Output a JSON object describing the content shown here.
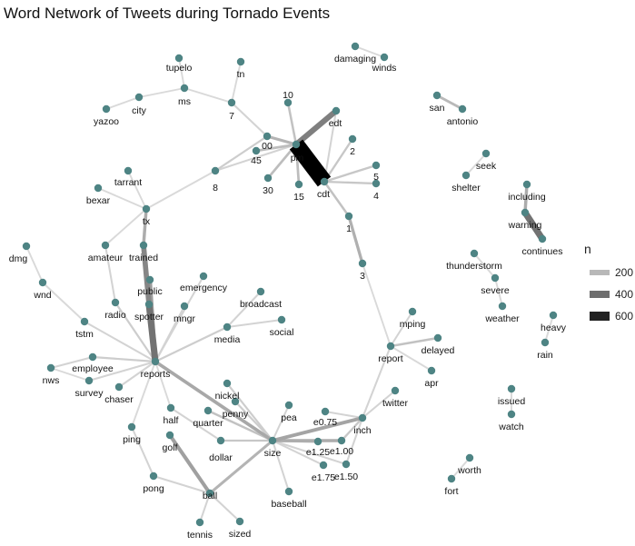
{
  "title": "Word Network of Tweets during Tornado Events",
  "legend": {
    "title": "n",
    "entries": [
      {
        "label": "200",
        "value": 200,
        "color": "#b8b8b8"
      },
      {
        "label": "400",
        "value": 400,
        "color": "#6e6e6e"
      },
      {
        "label": "600",
        "value": 600,
        "color": "#222222"
      }
    ]
  },
  "colors": {
    "node": "#4e8484",
    "edge_low": "#e3e3e3",
    "edge_high": "#000000"
  },
  "nodes": [
    {
      "id": "damaging",
      "label": "damaging"
    },
    {
      "id": "winds",
      "label": "winds"
    },
    {
      "id": "tupelo",
      "label": "tupelo"
    },
    {
      "id": "tn",
      "label": "tn"
    },
    {
      "id": "ms",
      "label": "ms"
    },
    {
      "id": "city",
      "label": "city"
    },
    {
      "id": "yazoo",
      "label": "yazoo"
    },
    {
      "id": "7",
      "label": "7"
    },
    {
      "id": "10",
      "label": "10"
    },
    {
      "id": "edt",
      "label": "edt"
    },
    {
      "id": "00",
      "label": "00"
    },
    {
      "id": "45",
      "label": "45"
    },
    {
      "id": "pm",
      "label": "pm"
    },
    {
      "id": "2",
      "label": "2"
    },
    {
      "id": "5",
      "label": "5"
    },
    {
      "id": "4",
      "label": "4"
    },
    {
      "id": "cdt",
      "label": "cdt"
    },
    {
      "id": "15",
      "label": "15"
    },
    {
      "id": "30",
      "label": "30"
    },
    {
      "id": "8",
      "label": "8"
    },
    {
      "id": "1",
      "label": "1"
    },
    {
      "id": "3",
      "label": "3"
    },
    {
      "id": "san",
      "label": "san"
    },
    {
      "id": "antonio",
      "label": "antonio"
    },
    {
      "id": "seek",
      "label": "seek"
    },
    {
      "id": "shelter",
      "label": "shelter"
    },
    {
      "id": "including",
      "label": "including"
    },
    {
      "id": "warning",
      "label": "warning"
    },
    {
      "id": "continues",
      "label": "continues"
    },
    {
      "id": "tarrant",
      "label": "tarrant"
    },
    {
      "id": "bexar",
      "label": "bexar"
    },
    {
      "id": "tx",
      "label": "tx"
    },
    {
      "id": "dmg",
      "label": "dmg"
    },
    {
      "id": "wnd",
      "label": "wnd"
    },
    {
      "id": "amateur",
      "label": "amateur"
    },
    {
      "id": "trained",
      "label": "trained"
    },
    {
      "id": "public",
      "label": "public"
    },
    {
      "id": "spotter",
      "label": "spotter"
    },
    {
      "id": "radio",
      "label": "radio"
    },
    {
      "id": "tstm",
      "label": "tstm"
    },
    {
      "id": "emergency",
      "label": "emergency"
    },
    {
      "id": "broadcast",
      "label": "broadcast"
    },
    {
      "id": "mngr",
      "label": "mngr"
    },
    {
      "id": "media",
      "label": "media"
    },
    {
      "id": "social",
      "label": "social"
    },
    {
      "id": "reports",
      "label": "reports"
    },
    {
      "id": "nws",
      "label": "nws"
    },
    {
      "id": "employee",
      "label": "employee"
    },
    {
      "id": "survey",
      "label": "survey"
    },
    {
      "id": "chaser",
      "label": "chaser"
    },
    {
      "id": "nickel",
      "label": "nickel"
    },
    {
      "id": "penny",
      "label": "penny"
    },
    {
      "id": "quarter",
      "label": "quarter"
    },
    {
      "id": "half",
      "label": "half"
    },
    {
      "id": "golf",
      "label": "golf"
    },
    {
      "id": "ping",
      "label": "ping"
    },
    {
      "id": "pong",
      "label": "pong"
    },
    {
      "id": "dollar",
      "label": "dollar"
    },
    {
      "id": "size",
      "label": "size"
    },
    {
      "id": "ball",
      "label": "ball"
    },
    {
      "id": "tennis",
      "label": "tennis"
    },
    {
      "id": "sized",
      "label": "sized"
    },
    {
      "id": "baseball",
      "label": "baseball"
    },
    {
      "id": "pea",
      "label": "pea"
    },
    {
      "id": "e0.75",
      "label": "e0.75"
    },
    {
      "id": "e1.25",
      "label": "e1.25"
    },
    {
      "id": "e1.00",
      "label": "e1.00"
    },
    {
      "id": "e1.75",
      "label": "e1.75"
    },
    {
      "id": "e1.50",
      "label": "e1.50"
    },
    {
      "id": "inch",
      "label": "inch"
    },
    {
      "id": "report",
      "label": "report"
    },
    {
      "id": "mping",
      "label": "mping"
    },
    {
      "id": "delayed",
      "label": "delayed"
    },
    {
      "id": "apr",
      "label": "apr"
    },
    {
      "id": "twitter",
      "label": "twitter"
    },
    {
      "id": "thunderstorm",
      "label": "thunderstorm"
    },
    {
      "id": "severe",
      "label": "severe"
    },
    {
      "id": "weather",
      "label": "weather"
    },
    {
      "id": "heavy",
      "label": "heavy"
    },
    {
      "id": "rain",
      "label": "rain"
    },
    {
      "id": "issued",
      "label": "issued"
    },
    {
      "id": "watch",
      "label": "watch"
    },
    {
      "id": "worth",
      "label": "worth"
    },
    {
      "id": "fort",
      "label": "fort"
    }
  ],
  "edges": [
    {
      "from": "pm",
      "to": "cdt",
      "n": 700
    },
    {
      "from": "pm",
      "to": "edt",
      "n": 260
    },
    {
      "from": "warning",
      "to": "continues",
      "n": 300
    },
    {
      "from": "including",
      "to": "warning",
      "n": 140
    },
    {
      "from": "tx",
      "to": "trained",
      "n": 140
    },
    {
      "from": "trained",
      "to": "spotter",
      "n": 240
    },
    {
      "from": "spotter",
      "to": "reports",
      "n": 300
    },
    {
      "from": "public",
      "to": "reports",
      "n": 180
    },
    {
      "from": "reports",
      "to": "size",
      "n": 150
    },
    {
      "from": "size",
      "to": "inch",
      "n": 160
    },
    {
      "from": "size",
      "to": "e1.00",
      "n": 140
    },
    {
      "from": "size",
      "to": "e1.25",
      "n": 120
    },
    {
      "from": "golf",
      "to": "ball",
      "n": 170
    },
    {
      "from": "ball",
      "to": "size",
      "n": 120
    },
    {
      "from": "cdt",
      "to": "1",
      "n": 90
    },
    {
      "from": "1",
      "to": "3",
      "n": 130
    },
    {
      "from": "report",
      "to": "delayed",
      "n": 90
    },
    {
      "from": "san",
      "to": "antonio",
      "n": 110
    },
    {
      "from": "00",
      "to": "pm",
      "n": 120
    },
    {
      "from": "45",
      "to": "pm",
      "n": 100
    },
    {
      "from": "30",
      "to": "pm",
      "n": 100
    },
    {
      "from": "15",
      "to": "pm",
      "n": 100
    },
    {
      "from": "10",
      "to": "pm",
      "n": 90
    },
    {
      "from": "2",
      "to": "cdt",
      "n": 80
    },
    {
      "from": "5",
      "to": "cdt",
      "n": 80
    },
    {
      "from": "4",
      "to": "cdt",
      "n": 80
    },
    {
      "from": "cdt",
      "to": "edt",
      "n": 60
    },
    {
      "from": "7",
      "to": "00",
      "n": 60
    },
    {
      "from": "8",
      "to": "00",
      "n": 70
    },
    {
      "from": "8",
      "to": "pm",
      "n": 60
    },
    {
      "from": "ms",
      "to": "7",
      "n": 50
    },
    {
      "from": "tupelo",
      "to": "ms",
      "n": 50
    },
    {
      "from": "city",
      "to": "ms",
      "n": 50
    },
    {
      "from": "yazoo",
      "to": "city",
      "n": 50
    },
    {
      "from": "tn",
      "to": "7",
      "n": 50
    },
    {
      "from": "damaging",
      "to": "winds",
      "n": 50
    },
    {
      "from": "seek",
      "to": "shelter",
      "n": 50
    },
    {
      "from": "tarrant",
      "to": "tx",
      "n": 50
    },
    {
      "from": "bexar",
      "to": "tx",
      "n": 50
    },
    {
      "from": "tx",
      "to": "8",
      "n": 50
    },
    {
      "from": "amateur",
      "to": "radio",
      "n": 60
    },
    {
      "from": "amateur",
      "to": "tx",
      "n": 50
    },
    {
      "from": "radio",
      "to": "reports",
      "n": 70
    },
    {
      "from": "dmg",
      "to": "wnd",
      "n": 50
    },
    {
      "from": "wnd",
      "to": "tstm",
      "n": 50
    },
    {
      "from": "tstm",
      "to": "reports",
      "n": 60
    },
    {
      "from": "emergency",
      "to": "reports",
      "n": 60
    },
    {
      "from": "broadcast",
      "to": "media",
      "n": 60
    },
    {
      "from": "mngr",
      "to": "reports",
      "n": 60
    },
    {
      "from": "media",
      "to": "reports",
      "n": 70
    },
    {
      "from": "social",
      "to": "media",
      "n": 60
    },
    {
      "from": "nws",
      "to": "employee",
      "n": 60
    },
    {
      "from": "employee",
      "to": "reports",
      "n": 70
    },
    {
      "from": "survey",
      "to": "reports",
      "n": 60
    },
    {
      "from": "nws",
      "to": "survey",
      "n": 50
    },
    {
      "from": "chaser",
      "to": "reports",
      "n": 60
    },
    {
      "from": "nickel",
      "to": "size",
      "n": 70
    },
    {
      "from": "penny",
      "to": "size",
      "n": 70
    },
    {
      "from": "quarter",
      "to": "size",
      "n": 90
    },
    {
      "from": "half",
      "to": "dollar",
      "n": 60
    },
    {
      "from": "dollar",
      "to": "size",
      "n": 80
    },
    {
      "from": "ping",
      "to": "pong",
      "n": 60
    },
    {
      "from": "pong",
      "to": "ball",
      "n": 60
    },
    {
      "from": "ping",
      "to": "reports",
      "n": 50
    },
    {
      "from": "half",
      "to": "reports",
      "n": 50
    },
    {
      "from": "tennis",
      "to": "ball",
      "n": 60
    },
    {
      "from": "sized",
      "to": "ball",
      "n": 60
    },
    {
      "from": "baseball",
      "to": "size",
      "n": 60
    },
    {
      "from": "pea",
      "to": "size",
      "n": 60
    },
    {
      "from": "e0.75",
      "to": "inch",
      "n": 60
    },
    {
      "from": "e1.75",
      "to": "size",
      "n": 60
    },
    {
      "from": "e1.50",
      "to": "size",
      "n": 60
    },
    {
      "from": "e1.00",
      "to": "inch",
      "n": 80
    },
    {
      "from": "e1.50",
      "to": "inch",
      "n": 60
    },
    {
      "from": "inch",
      "to": "report",
      "n": 60
    },
    {
      "from": "twitter",
      "to": "inch",
      "n": 60
    },
    {
      "from": "report",
      "to": "3",
      "n": 50
    },
    {
      "from": "mping",
      "to": "report",
      "n": 60
    },
    {
      "from": "apr",
      "to": "report",
      "n": 50
    },
    {
      "from": "thunderstorm",
      "to": "severe",
      "n": 50
    },
    {
      "from": "severe",
      "to": "weather",
      "n": 50
    },
    {
      "from": "heavy",
      "to": "rain",
      "n": 50
    },
    {
      "from": "issued",
      "to": "watch",
      "n": 50
    },
    {
      "from": "worth",
      "to": "fort",
      "n": 50
    }
  ]
}
